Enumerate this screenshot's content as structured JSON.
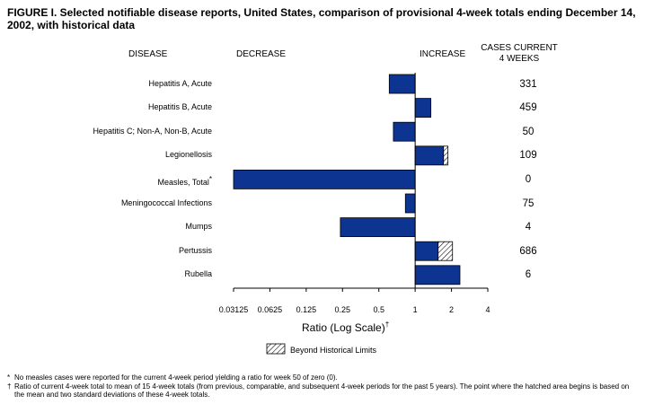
{
  "title": "FIGURE I. Selected notifiable disease reports, United States, comparison of provisional 4-week totals ending December 14, 2002, with historical data",
  "headers": {
    "disease": "DISEASE",
    "decrease": "DECREASE",
    "increase": "INCREASE",
    "cases_line1": "CASES CURRENT",
    "cases_line2": "4 WEEKS"
  },
  "chart_data": {
    "type": "bar",
    "orientation": "horizontal",
    "x_scale": "log2",
    "xlabel": "Ratio (Log Scale)",
    "xlabel_mark": "†",
    "xlim": [
      0.03125,
      4
    ],
    "baseline": 1,
    "tick_values": [
      0.03125,
      0.0625,
      0.125,
      0.25,
      0.5,
      1,
      2,
      4
    ],
    "tick_labels": [
      "0.03125",
      "0.0625",
      "0.125",
      "0.25",
      "0.5",
      "1",
      "2",
      "4"
    ],
    "legend": "Beyond Historical Limits",
    "rows": [
      {
        "disease": "Hepatitis A, Acute",
        "mark": "",
        "ratio": 0.61,
        "beyond_from": null,
        "cases": "331"
      },
      {
        "disease": "Hepatitis B, Acute",
        "mark": "",
        "ratio": 1.35,
        "beyond_from": null,
        "cases": "459"
      },
      {
        "disease": "Hepatitis C; Non-A, Non-B, Acute",
        "mark": "",
        "ratio": 0.66,
        "beyond_from": null,
        "cases": "50"
      },
      {
        "disease": "Legionellosis",
        "mark": "",
        "ratio": 1.87,
        "beyond_from": 1.72,
        "cases": "109"
      },
      {
        "disease": "Measles, Total",
        "mark": "*",
        "ratio": 0.03125,
        "beyond_from": null,
        "cases": "0"
      },
      {
        "disease": "Meningococcal Infections",
        "mark": "",
        "ratio": 0.83,
        "beyond_from": null,
        "cases": "75"
      },
      {
        "disease": "Mumps",
        "mark": "",
        "ratio": 0.24,
        "beyond_from": null,
        "cases": "4"
      },
      {
        "disease": "Pertussis",
        "mark": "",
        "ratio": 2.04,
        "beyond_from": 1.55,
        "cases": "686"
      },
      {
        "disease": "Rubella",
        "mark": "",
        "ratio": 2.35,
        "beyond_from": null,
        "cases": "6"
      }
    ],
    "colors": {
      "bar": "#0d3491",
      "hatch": "#000000"
    }
  },
  "footnotes": [
    {
      "mark": "*",
      "text": "No measles cases were reported for the current 4-week period yielding a ratio for week 50 of zero (0)."
    },
    {
      "mark": "†",
      "text": "Ratio of current 4-week total to mean of 15 4-week totals (from previous, comparable, and subsequent 4-week periods for the past 5 years). The point where the hatched area begins is based on the mean and two standard deviations of these 4-week totals."
    }
  ]
}
